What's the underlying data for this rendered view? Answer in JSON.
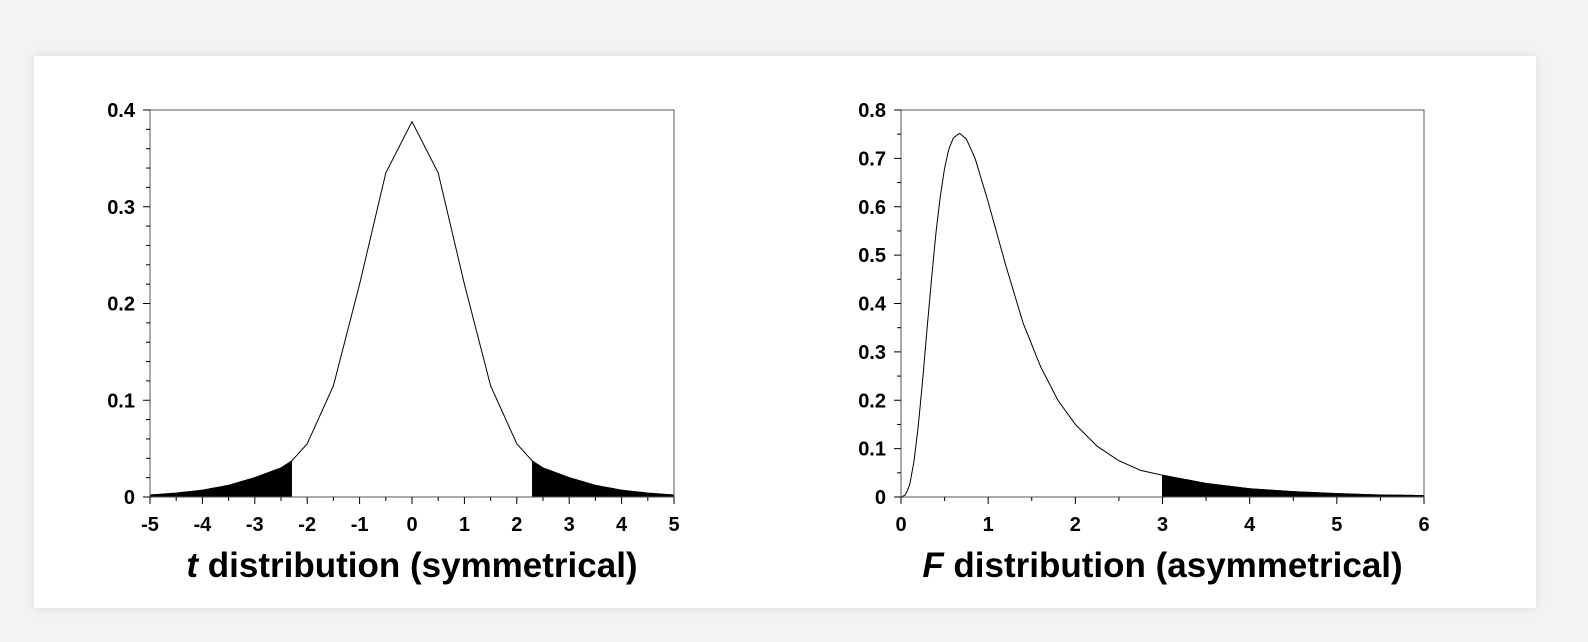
{
  "chart_data": [
    {
      "type": "area",
      "distribution": "t",
      "title_italic": "t",
      "title_rest": " distribution (symmetrical)",
      "xlim": [
        -5,
        5
      ],
      "ylim": [
        0,
        0.4
      ],
      "xticks": [
        -5,
        -4,
        -3,
        -2,
        -1,
        0,
        1,
        2,
        3,
        4,
        5
      ],
      "yticks": [
        0,
        0.1,
        0.2,
        0.3,
        0.4
      ],
      "xticklabels": [
        "-5",
        "-4",
        "-3",
        "-2",
        "-1",
        "0",
        "1",
        "2",
        "3",
        "4",
        "5"
      ],
      "yticklabels": [
        "0",
        "0.1",
        "0.2",
        "0.3",
        "0.4"
      ],
      "series": [
        {
          "x": [
            -5,
            -4.5,
            -4,
            -3.5,
            -3,
            -2.5,
            -2.3,
            -2,
            -1.5,
            -1,
            -0.5,
            0,
            0.5,
            1,
            1.5,
            2,
            2.3,
            2.5,
            3,
            3.5,
            4,
            4.5,
            5
          ],
          "y": [
            0.002,
            0.004,
            0.007,
            0.012,
            0.02,
            0.03,
            0.037,
            0.055,
            0.115,
            0.22,
            0.335,
            0.388,
            0.335,
            0.22,
            0.115,
            0.055,
            0.037,
            0.03,
            0.02,
            0.012,
            0.007,
            0.004,
            0.002
          ]
        }
      ],
      "shaded_regions": [
        [
          -5,
          -2.3
        ],
        [
          2.3,
          5
        ]
      ],
      "grid": false,
      "legend": "none"
    },
    {
      "type": "area",
      "distribution": "F",
      "title_italic": "F",
      "title_rest": " distribution (asymmetrical)",
      "xlim": [
        0,
        6
      ],
      "ylim": [
        0,
        0.8
      ],
      "xticks": [
        0,
        1,
        2,
        3,
        4,
        5,
        6
      ],
      "yticks": [
        0,
        0.1,
        0.2,
        0.3,
        0.4,
        0.5,
        0.6,
        0.7,
        0.8
      ],
      "xticklabels": [
        "0",
        "1",
        "2",
        "3",
        "4",
        "5",
        "6"
      ],
      "yticklabels": [
        "0",
        "0.1",
        "0.2",
        "0.3",
        "0.4",
        "0.5",
        "0.6",
        "0.7",
        "0.8"
      ],
      "series": [
        {
          "x": [
            0,
            0.05,
            0.1,
            0.15,
            0.2,
            0.25,
            0.3,
            0.35,
            0.4,
            0.45,
            0.5,
            0.55,
            0.6,
            0.67,
            0.75,
            0.85,
            1,
            1.2,
            1.4,
            1.6,
            1.8,
            2,
            2.25,
            2.5,
            2.75,
            3,
            3.5,
            4,
            4.5,
            5,
            5.5,
            6
          ],
          "y": [
            0,
            0.004,
            0.025,
            0.075,
            0.15,
            0.245,
            0.35,
            0.45,
            0.545,
            0.62,
            0.68,
            0.72,
            0.742,
            0.752,
            0.74,
            0.7,
            0.61,
            0.48,
            0.36,
            0.27,
            0.2,
            0.15,
            0.105,
            0.075,
            0.055,
            0.045,
            0.028,
            0.017,
            0.011,
            0.007,
            0.004,
            0.003
          ]
        }
      ],
      "shaded_regions": [
        [
          3,
          6
        ]
      ],
      "grid": false,
      "legend": "none"
    }
  ]
}
